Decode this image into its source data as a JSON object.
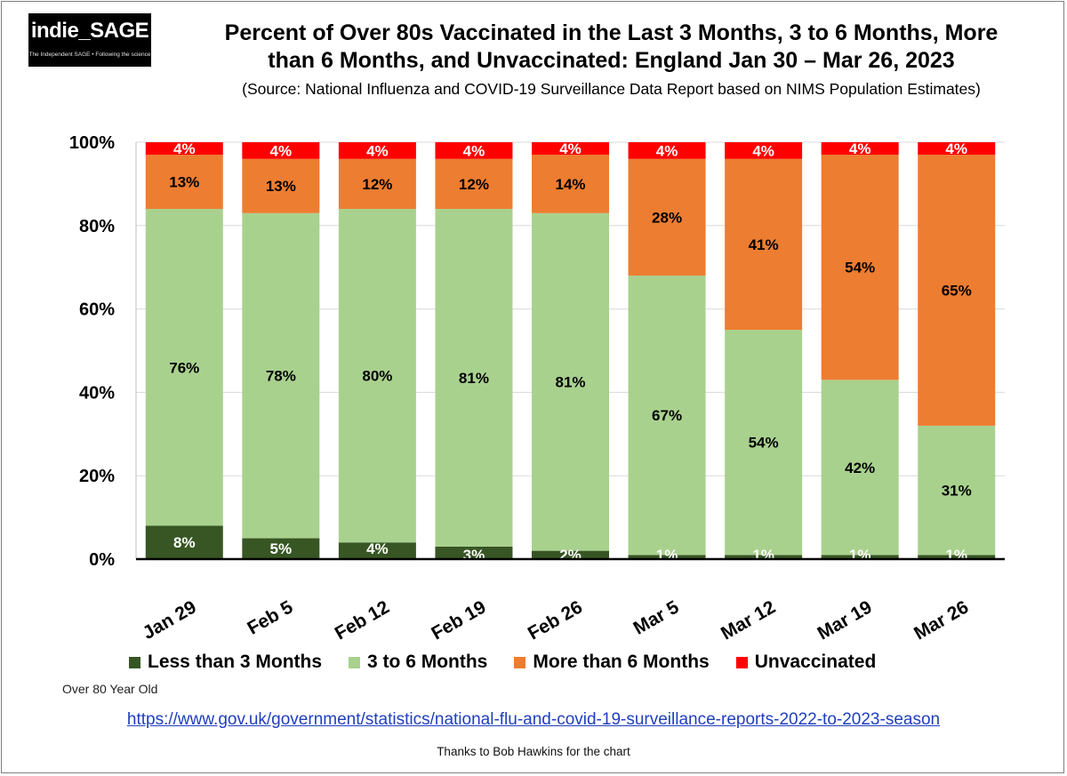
{
  "logo": {
    "name": "indie_SAGE",
    "tagline": "The Independent SAGE • Following the science"
  },
  "title_line1": "Percent of Over 80s Vaccinated in the Last 3 Months, 3 to 6 Months, More",
  "title_line2": "than 6 Months, and Unvaccinated: England Jan 30 – Mar 26, 2023",
  "subtitle": "(Source: National Influenza and COVID-19 Surveillance Data Report based on NIMS Population Estimates)",
  "chart_data": {
    "type": "bar",
    "stacked": true,
    "categories": [
      "Jan 29",
      "Feb 5",
      "Feb 12",
      "Feb 19",
      "Feb 26",
      "Mar 5",
      "Mar 12",
      "Mar 19",
      "Mar 26"
    ],
    "y_ticks": [
      "0%",
      "20%",
      "40%",
      "60%",
      "80%",
      "100%"
    ],
    "ylim": [
      0,
      100
    ],
    "grid": true,
    "legend_position": "bottom",
    "series": [
      {
        "name": "Less than 3 Months",
        "color": "#375623",
        "label_color": "#ffffff",
        "values": [
          8,
          5,
          4,
          3,
          2,
          1,
          1,
          1,
          1
        ],
        "labels": [
          "8%",
          "5%",
          "4%",
          "3%",
          "2%",
          "1%",
          "1%",
          "1%",
          "1%"
        ]
      },
      {
        "name": "3 to 6 Months",
        "color": "#a9d18e",
        "label_color": "#000000",
        "values": [
          76,
          78,
          80,
          81,
          81,
          67,
          54,
          42,
          31
        ],
        "labels": [
          "76%",
          "78%",
          "80%",
          "81%",
          "81%",
          "67%",
          "54%",
          "42%",
          "31%"
        ]
      },
      {
        "name": "More than 6 Months",
        "color": "#ed7d31",
        "label_color": "#000000",
        "values": [
          13,
          13,
          12,
          12,
          14,
          28,
          41,
          54,
          65
        ],
        "labels": [
          "13%",
          "13%",
          "12%",
          "12%",
          "14%",
          "28%",
          "41%",
          "54%",
          "65%"
        ]
      },
      {
        "name": "Unvaccinated",
        "color": "#ff0000",
        "label_color": "#ffffff",
        "values": [
          4,
          4,
          4,
          4,
          4,
          4,
          4,
          4,
          4
        ],
        "labels": [
          "4%",
          "4%",
          "4%",
          "4%",
          "4%",
          "4%",
          "4%",
          "4%",
          "4%"
        ]
      }
    ]
  },
  "legend": {
    "items": [
      {
        "label": "Less than 3 Months",
        "color": "#375623"
      },
      {
        "label": "3 to 6 Months",
        "color": "#a9d18e"
      },
      {
        "label": "More than 6 Months",
        "color": "#ed7d31"
      },
      {
        "label": "Unvaccinated",
        "color": "#ff0000"
      }
    ]
  },
  "note": "Over 80 Year Old",
  "link": "https://www.gov.uk/government/statistics/national-flu-and-covid-19-surveillance-reports-2022-to-2023-season",
  "credit": "Thanks to Bob Hawkins for the chart"
}
